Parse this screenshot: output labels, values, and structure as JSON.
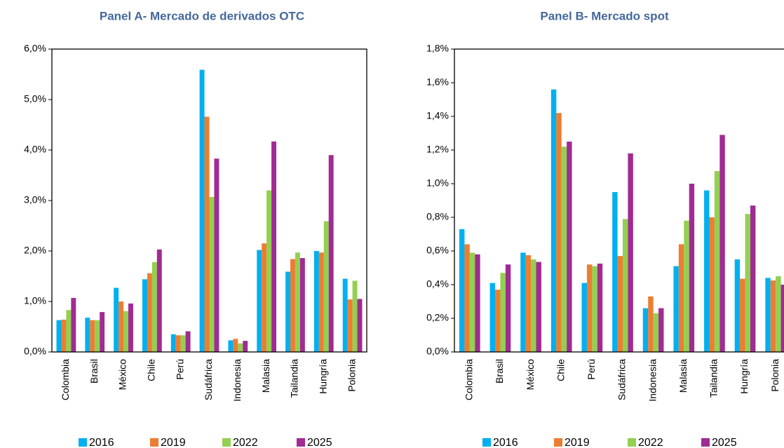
{
  "chart_data": [
    {
      "type": "bar",
      "title": "Panel A- Mercado de derivados OTC",
      "categories": [
        "Colombia",
        "Brasil",
        "México",
        "Chile",
        "Perú",
        "Sudáfrica",
        "Indonesia",
        "Malasia",
        "Tailandia",
        "Hungría",
        "Polonia"
      ],
      "series": [
        {
          "name": "2016",
          "color": "#00b0f0",
          "values": [
            0.63,
            0.68,
            1.27,
            1.44,
            0.35,
            5.59,
            0.23,
            2.02,
            1.59,
            2.0,
            1.45
          ]
        },
        {
          "name": "2019",
          "color": "#ed7d31",
          "values": [
            0.64,
            0.63,
            1.0,
            1.56,
            0.33,
            4.66,
            0.26,
            2.15,
            1.84,
            1.97,
            1.04
          ]
        },
        {
          "name": "2022",
          "color": "#92d050",
          "values": [
            0.83,
            0.63,
            0.81,
            1.78,
            0.33,
            3.07,
            0.17,
            3.2,
            1.97,
            2.59,
            1.41
          ]
        },
        {
          "name": "2025",
          "color": "#a02b93",
          "values": [
            1.07,
            0.79,
            0.96,
            2.03,
            0.41,
            3.83,
            0.22,
            4.17,
            1.86,
            3.9,
            1.05
          ]
        }
      ],
      "ylim": [
        0,
        6
      ],
      "yticks": [
        {
          "value": 0,
          "label": "0,0%"
        },
        {
          "value": 1,
          "label": "1,0%"
        },
        {
          "value": 2,
          "label": "2,0%"
        },
        {
          "value": 3,
          "label": "3,0%"
        },
        {
          "value": 4,
          "label": "4,0%"
        },
        {
          "value": 5,
          "label": "5,0%"
        },
        {
          "value": 6,
          "label": "6,0%"
        }
      ],
      "legend": "bottom"
    },
    {
      "type": "bar",
      "title": "Panel B- Mercado spot",
      "categories": [
        "Colombia",
        "Brasil",
        "México",
        "Chile",
        "Perú",
        "Sudáfrica",
        "Indonesia",
        "Malasia",
        "Tailandia",
        "Hungría",
        "Polonia"
      ],
      "series": [
        {
          "name": "2016",
          "color": "#00b0f0",
          "values": [
            0.73,
            0.41,
            0.59,
            1.56,
            0.41,
            0.95,
            0.26,
            0.51,
            0.96,
            0.55,
            0.44
          ]
        },
        {
          "name": "2019",
          "color": "#ed7d31",
          "values": [
            0.64,
            0.37,
            0.575,
            1.42,
            0.52,
            0.57,
            0.33,
            0.64,
            0.8,
            0.435,
            0.425
          ]
        },
        {
          "name": "2022",
          "color": "#92d050",
          "values": [
            0.59,
            0.47,
            0.55,
            1.22,
            0.51,
            0.79,
            0.23,
            0.78,
            1.075,
            0.82,
            0.45
          ]
        },
        {
          "name": "2025",
          "color": "#a02b93",
          "values": [
            0.58,
            0.52,
            0.535,
            1.25,
            0.525,
            1.18,
            0.26,
            1.0,
            1.29,
            0.87,
            0.4
          ]
        }
      ],
      "ylim": [
        0,
        1.8
      ],
      "yticks": [
        {
          "value": 0,
          "label": "0,0%"
        },
        {
          "value": 0.2,
          "label": "0,2%"
        },
        {
          "value": 0.4,
          "label": "0,4%"
        },
        {
          "value": 0.6,
          "label": "0,6%"
        },
        {
          "value": 0.8,
          "label": "0,8%"
        },
        {
          "value": 1.0,
          "label": "1,0%"
        },
        {
          "value": 1.2,
          "label": "1,2%"
        },
        {
          "value": 1.4,
          "label": "1,4%"
        },
        {
          "value": 1.6,
          "label": "1,6%"
        },
        {
          "value": 1.8,
          "label": "1,8%"
        }
      ],
      "legend": "bottom"
    }
  ]
}
